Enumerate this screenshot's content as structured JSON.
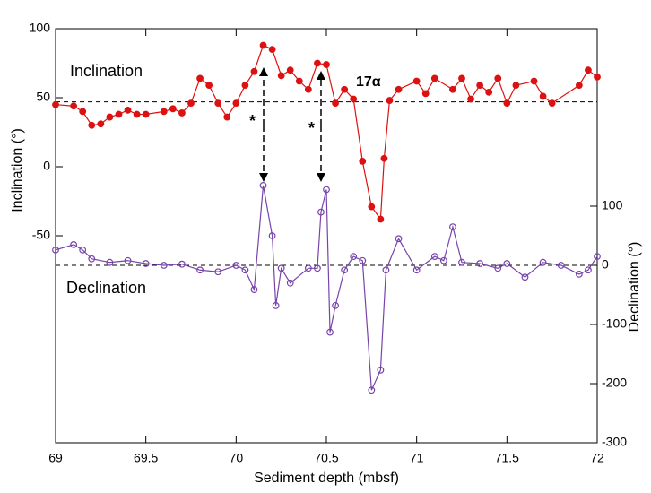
{
  "chart_data": {
    "type": "line",
    "x_label": "Sediment depth (mbsf)",
    "y_label": "Inclination (°)",
    "y2_label": "Declination (°)",
    "xlim": [
      69,
      72
    ],
    "xticks": [
      69,
      69.5,
      70,
      70.5,
      71,
      71.5,
      72
    ],
    "ylim": [
      -200,
      100
    ],
    "yticks": [
      -50,
      0,
      50,
      100
    ],
    "y2lim": [
      -300,
      400
    ],
    "y2ticks": [
      -300,
      -200,
      -100,
      0,
      100
    ],
    "hlines": [
      {
        "value": 47,
        "axis": "y"
      },
      {
        "value": 0,
        "axis": "y2"
      }
    ],
    "annotations": [
      "Inclination",
      "Declination",
      "17α",
      "*",
      "*"
    ],
    "series": [
      {
        "name": "Inclination",
        "color": "#dd1111",
        "marker": "filled",
        "axis": "y",
        "x": [
          69.0,
          69.1,
          69.15,
          69.2,
          69.25,
          69.3,
          69.35,
          69.4,
          69.45,
          69.5,
          69.6,
          69.65,
          69.7,
          69.75,
          69.8,
          69.85,
          69.9,
          69.95,
          70.0,
          70.05,
          70.1,
          70.15,
          70.2,
          70.25,
          70.3,
          70.35,
          70.4,
          70.45,
          70.5,
          70.55,
          70.6,
          70.65,
          70.7,
          70.75,
          70.8,
          70.82,
          70.85,
          70.9,
          71.0,
          71.05,
          71.1,
          71.2,
          71.25,
          71.3,
          71.35,
          71.4,
          71.45,
          71.5,
          71.55,
          71.65,
          71.7,
          71.75,
          71.9,
          71.95,
          72.0
        ],
        "values": [
          45,
          44,
          40,
          30,
          31,
          36,
          38,
          41,
          38,
          38,
          40,
          42,
          39,
          46,
          64,
          59,
          46,
          36,
          46,
          59,
          69,
          88,
          85,
          66,
          70,
          62,
          56,
          75,
          74,
          46,
          56,
          49,
          4,
          -29,
          -38,
          6,
          48,
          56,
          62,
          53,
          64,
          56,
          64,
          49,
          59,
          54,
          64,
          46,
          59,
          62,
          51,
          46,
          59,
          70,
          65
        ]
      },
      {
        "name": "Declination",
        "color": "#7744aa",
        "marker": "open",
        "axis": "y2",
        "x": [
          69.0,
          69.1,
          69.15,
          69.2,
          69.3,
          69.4,
          69.5,
          69.6,
          69.7,
          69.8,
          69.9,
          70.0,
          70.05,
          70.1,
          70.15,
          70.2,
          70.22,
          70.25,
          70.3,
          70.4,
          70.45,
          70.47,
          70.5,
          70.52,
          70.55,
          70.6,
          70.65,
          70.7,
          70.75,
          70.8,
          70.83,
          70.9,
          71.0,
          71.1,
          71.15,
          71.2,
          71.25,
          71.35,
          71.45,
          71.5,
          71.6,
          71.7,
          71.8,
          71.9,
          71.95,
          72.0
        ],
        "values": [
          26,
          35,
          26,
          11,
          5,
          8,
          3,
          0,
          2,
          -8,
          -11,
          0,
          -8,
          -41,
          135,
          50,
          -68,
          -5,
          -30,
          -5,
          -5,
          90,
          128,
          -113,
          -68,
          -8,
          15,
          8,
          -211,
          -177,
          -8,
          45,
          -8,
          15,
          8,
          65,
          5,
          3,
          -5,
          3,
          -20,
          5,
          0,
          -15,
          -8,
          15
        ]
      }
    ]
  }
}
